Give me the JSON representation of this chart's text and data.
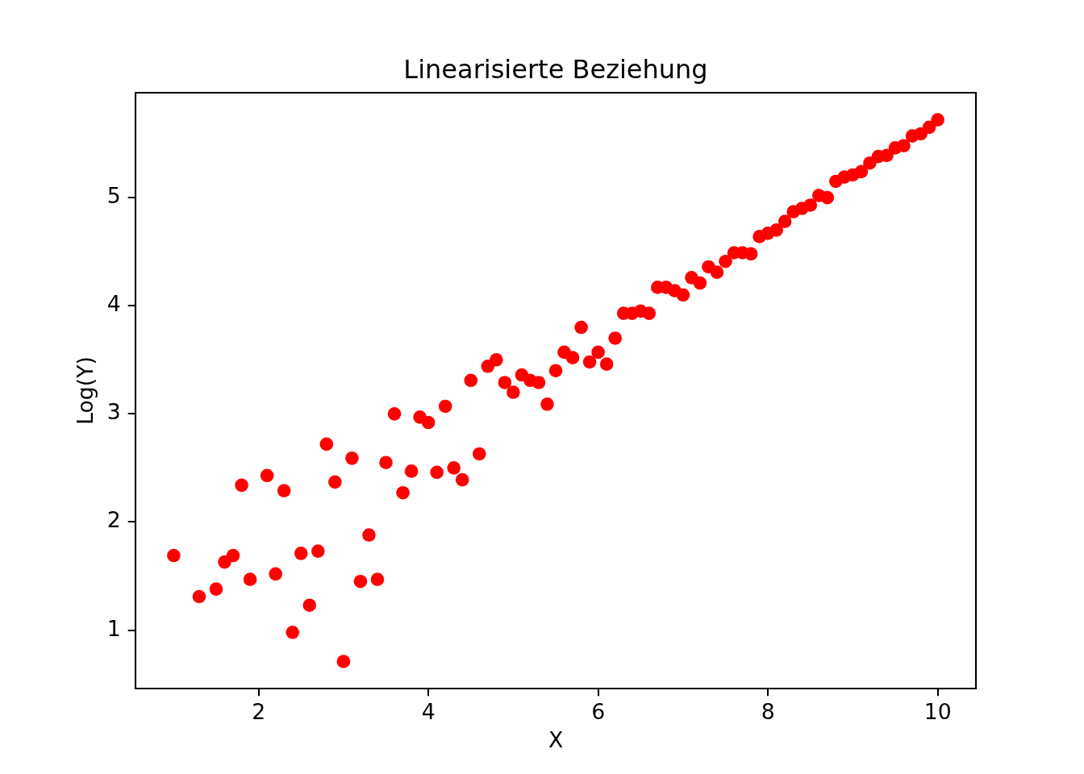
{
  "chart_data": {
    "type": "scatter",
    "title": "Linearisierte Beziehung",
    "xlabel": "X",
    "ylabel": "Log(Y)",
    "x": [
      1,
      1.3,
      1.5,
      1.6,
      1.7,
      1.8,
      1.9,
      2.1,
      2.2,
      2.3,
      2.4,
      2.5,
      2.6,
      2.7,
      2.8,
      2.9,
      3,
      3.1,
      3.2,
      3.3,
      3.4,
      3.5,
      3.6,
      3.7,
      3.8,
      3.9,
      4,
      4.1,
      4.2,
      4.3,
      4.4,
      4.5,
      4.6,
      4.7,
      4.8,
      4.9,
      5,
      5.1,
      5.2,
      5.3,
      5.4,
      5.5,
      5.6,
      5.7,
      5.8,
      5.9,
      6,
      6.1,
      6.2,
      6.3,
      6.4,
      6.5,
      6.6,
      6.7,
      6.8,
      6.9,
      7,
      7.1,
      7.2,
      7.3,
      7.4,
      7.5,
      7.6,
      7.7,
      7.8,
      7.9,
      8,
      8.1,
      8.2,
      8.3,
      8.4,
      8.5,
      8.6,
      8.7,
      8.8,
      8.9,
      9,
      9.1,
      9.2,
      9.3,
      9.4,
      9.5,
      9.6,
      9.7,
      9.8,
      9.9,
      10
    ],
    "series": [
      {
        "color": "#ff0000",
        "values": [
          1.69,
          1.31,
          1.38,
          1.63,
          1.69,
          2.34,
          1.47,
          2.43,
          1.52,
          2.29,
          0.98,
          1.71,
          1.23,
          1.73,
          2.72,
          2.37,
          0.71,
          2.59,
          1.45,
          1.88,
          1.47,
          2.55,
          3.0,
          2.27,
          2.47,
          2.97,
          2.92,
          2.46,
          3.07,
          2.5,
          2.39,
          3.31,
          2.63,
          3.44,
          3.5,
          3.29,
          3.2,
          3.36,
          3.31,
          3.29,
          3.09,
          3.4,
          3.57,
          3.52,
          3.8,
          3.48,
          3.57,
          3.46,
          3.7,
          3.93,
          3.93,
          3.95,
          3.93,
          4.17,
          4.17,
          4.14,
          4.1,
          4.26,
          4.21,
          4.36,
          4.31,
          4.41,
          4.49,
          4.49,
          4.48,
          4.64,
          4.67,
          4.7,
          4.78,
          4.87,
          4.9,
          4.93,
          5.02,
          5,
          5.15,
          5.19,
          5.21,
          5.24,
          5.32,
          5.38,
          5.39,
          5.46,
          5.48,
          5.57,
          5.59,
          5.65,
          5.72
        ]
      }
    ],
    "xlim": [
      0.55,
      10.45
    ],
    "ylim": [
      0.46,
      5.97
    ],
    "xticks": [
      2,
      4,
      6,
      8,
      10
    ],
    "yticks": [
      1,
      2,
      3,
      4,
      5
    ],
    "grid": false,
    "marker": "circle"
  }
}
